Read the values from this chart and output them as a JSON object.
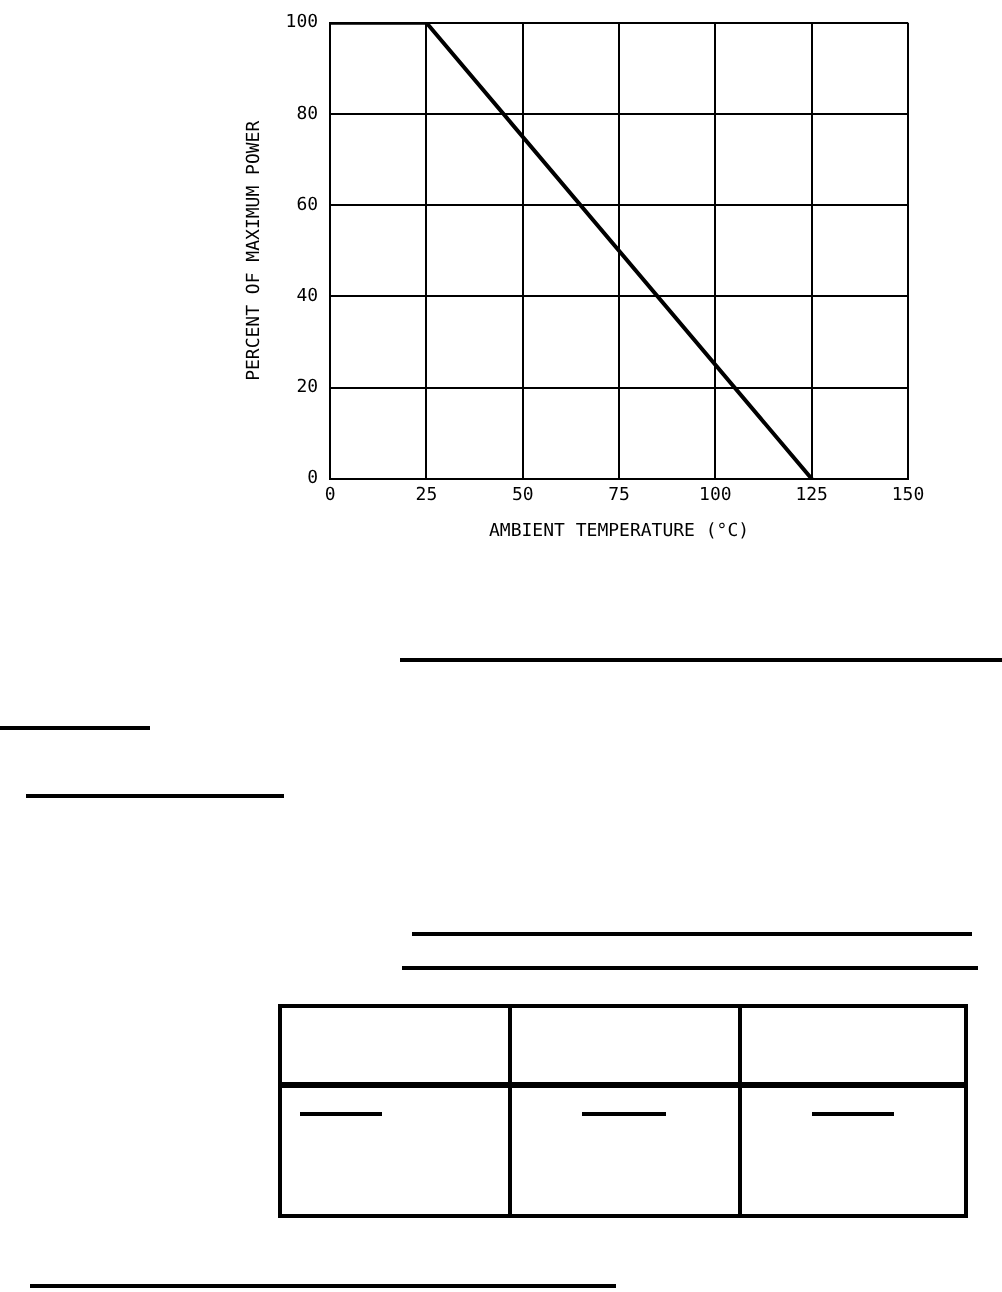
{
  "chart_data": {
    "type": "line",
    "xlabel": "AMBIENT TEMPERATURE (°C)",
    "ylabel": "PERCENT OF MAXIMUM POWER",
    "x": [
      0,
      25,
      125
    ],
    "series": [
      {
        "color": "#000000",
        "values": [
          100,
          100,
          0
        ]
      }
    ],
    "xlim": [
      0,
      150
    ],
    "xticks": [
      0,
      25,
      50,
      75,
      100,
      125,
      150
    ],
    "ylim": [
      0,
      100
    ],
    "yticks": [
      0,
      20,
      40,
      60,
      80,
      100
    ],
    "grid": true,
    "marker": "none",
    "line_style": "solid"
  }
}
